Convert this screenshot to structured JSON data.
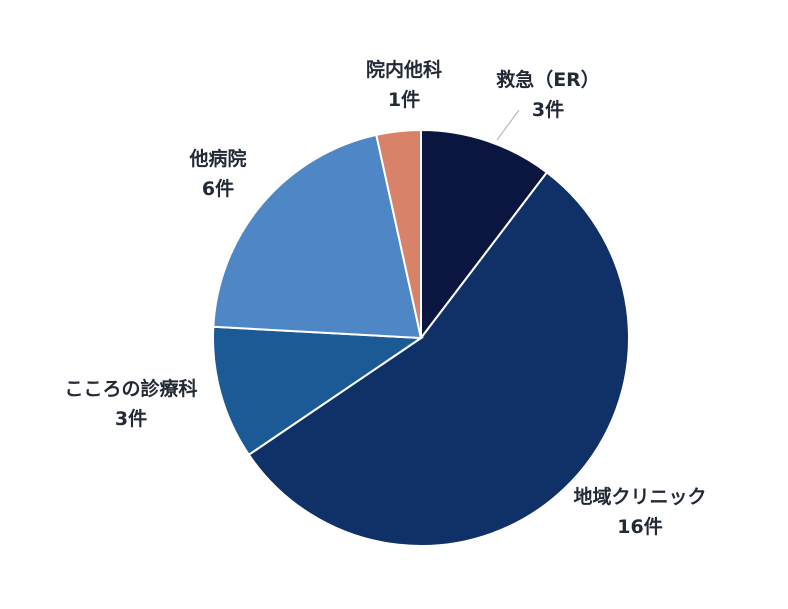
{
  "chart_data": {
    "type": "pie",
    "title": "",
    "categories": [
      "救急（ER）",
      "地域クリニック",
      "こころの診療科",
      "他病院",
      "院内他科"
    ],
    "values": [
      3,
      16,
      3,
      6,
      1
    ],
    "value_labels": [
      "3件",
      "16件",
      "3件",
      "6件",
      "1件"
    ],
    "colors": [
      "#0a1540",
      "#0f3168",
      "#1c5a95",
      "#4f86c6",
      "#d9826a"
    ],
    "start": "12 o'clock",
    "direction": "clockwise"
  }
}
